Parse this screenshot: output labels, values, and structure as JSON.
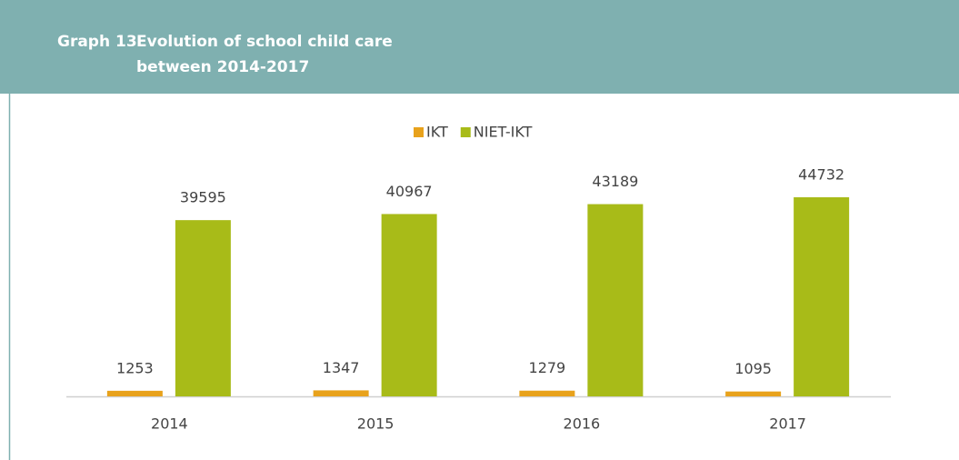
{
  "chart_data": {
    "type": "bar",
    "label": "Graph 13",
    "title_lines": [
      "Evolution of school child care",
      "between 2014-2017"
    ],
    "categories": [
      "2014",
      "2015",
      "2016",
      "2017"
    ],
    "series": [
      {
        "name": "IKT",
        "color": "#e8a21c",
        "values": [
          1253,
          1347,
          1279,
          1095
        ]
      },
      {
        "name": "NIET-IKT",
        "color": "#a8bb18",
        "values": [
          39595,
          40967,
          43189,
          44732
        ]
      }
    ],
    "legend": "top"
  }
}
